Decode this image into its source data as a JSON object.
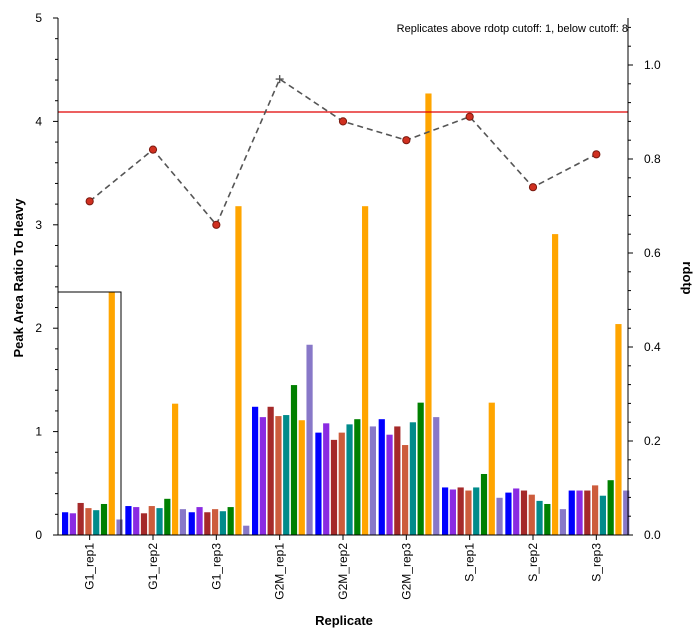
{
  "chart_data": {
    "type": "bar",
    "xlabel": "Replicate",
    "ylabel": "Peak Area Ratio To Heavy",
    "y2label": "rdotp",
    "annotation": "Replicates above rdotp cutoff: 1, below cutoff: 8",
    "categories": [
      "G1_rep1",
      "G1_rep2",
      "G1_rep3",
      "G2M_rep1",
      "G2M_rep2",
      "G2M_rep3",
      "S_rep1",
      "S_rep2",
      "S_rep3"
    ],
    "ylim": [
      0,
      5
    ],
    "y2lim": [
      0,
      1.1
    ],
    "yticks": [
      "0",
      "1",
      "2",
      "3",
      "4",
      "5"
    ],
    "y2ticks": [
      "0.0",
      "0.2",
      "0.4",
      "0.6",
      "0.8",
      "1.0"
    ],
    "legend_box": "left, partially visible",
    "series": [
      {
        "color": "#0000ff",
        "values": [
          0.22,
          0.28,
          0.22,
          1.24,
          0.99,
          1.12,
          0.46,
          0.41,
          0.43
        ]
      },
      {
        "color": "#8a2be2",
        "values": [
          0.21,
          0.27,
          0.27,
          1.14,
          1.08,
          0.97,
          0.44,
          0.45,
          0.43
        ]
      },
      {
        "color": "#a52a2a",
        "values": [
          0.31,
          0.21,
          0.22,
          1.24,
          0.92,
          1.05,
          0.46,
          0.43,
          0.43
        ]
      },
      {
        "color": "#cd5c3c",
        "values": [
          0.26,
          0.28,
          0.25,
          1.15,
          0.99,
          0.87,
          0.43,
          0.39,
          0.48
        ]
      },
      {
        "color": "#008b8b",
        "values": [
          0.24,
          0.26,
          0.23,
          1.16,
          1.07,
          1.09,
          0.46,
          0.33,
          0.38
        ]
      },
      {
        "color": "#008000",
        "values": [
          0.3,
          0.35,
          0.27,
          1.45,
          1.12,
          1.28,
          0.59,
          0.3,
          0.53
        ]
      },
      {
        "color": "#ffa500",
        "values": [
          2.35,
          1.27,
          3.18,
          1.11,
          3.18,
          4.27,
          1.28,
          2.91,
          2.04
        ]
      },
      {
        "color": "#8878c8",
        "values": [
          0.15,
          0.25,
          0.09,
          1.84,
          1.05,
          1.14,
          0.36,
          0.25,
          0.43
        ]
      }
    ],
    "rdotp": [
      0.71,
      0.82,
      0.66,
      0.97,
      0.88,
      0.84,
      0.89,
      0.74,
      0.81
    ],
    "cutoff": 0.9,
    "colors": {
      "cutoff_line": "#e00000",
      "rdotp_line": "#555555",
      "rdotp_marker": "#d03020"
    }
  }
}
